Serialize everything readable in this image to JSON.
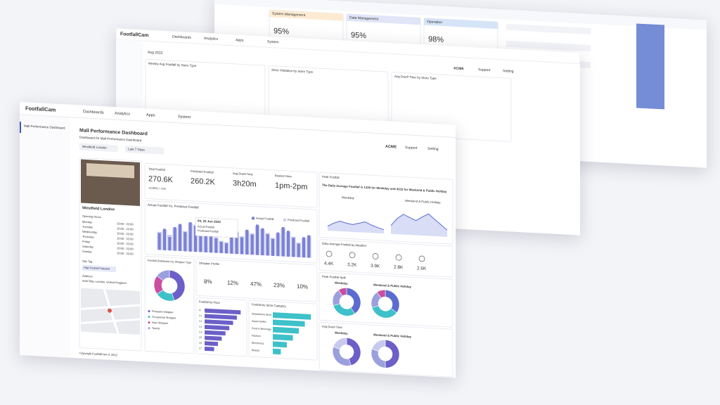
{
  "back_panel_top": {
    "cards": [
      {
        "label": "System Management",
        "value": "95%"
      },
      {
        "label": "Data Management",
        "value": "95%"
      },
      {
        "label": "Operation",
        "value": "98%"
      }
    ]
  },
  "back_panel_mid": {
    "brand": "FootfallCam",
    "nav": [
      "Dashboards",
      "Analytics",
      "Apps",
      "System"
    ],
    "filter": "Aug 2022",
    "account": "ACME",
    "links": [
      "Support",
      "Setting"
    ],
    "charts": [
      "Weekly Avg Footfall by Store Type",
      "Store Visitation by Store Type",
      "Avg Dwell Time by Store Type"
    ]
  },
  "app": {
    "brand": "FootfallCam",
    "nav": [
      "Dashboards",
      "Analytics",
      "Apps",
      "System"
    ],
    "sidebar": "Mall Performance Dashboard",
    "account": "ACME",
    "links": [
      "Support",
      "Setting"
    ]
  },
  "dashboard": {
    "title": "Mall Performance Dashboard",
    "subtitle": "Dashboard for Mall Performance Dashboard",
    "filters": [
      "Westfield London",
      "Last 7 Days"
    ],
    "copyright": "Copyright FootfallCam © 2022"
  },
  "site": {
    "name": "Westfield London",
    "hours_title": "Opening Hours",
    "hours": [
      [
        "Monday",
        "10:00 - 22:00"
      ],
      [
        "Tuesday",
        "10:00 - 22:00"
      ],
      [
        "Wednesday",
        "10:00 - 22:00"
      ],
      [
        "Thursday",
        "10:00 - 22:00"
      ],
      [
        "Friday",
        "10:00 - 22:00"
      ],
      [
        "Saturday",
        "10:00 - 22:00"
      ],
      [
        "Sunday",
        "10:00 - 22:00"
      ]
    ],
    "tag_title": "Site Tag",
    "tag": "High Footfall Potential",
    "address_title": "Address",
    "address": "Ariel Way, London, United Kingdom"
  },
  "kpis": [
    {
      "label": "Total Footfall",
      "value": "270.6K",
      "change": "+0.05% / +1%"
    },
    {
      "label": "Predicted Footfall",
      "value": "260.2K"
    },
    {
      "label": "Avg Dwell Time",
      "value": "3h20m"
    },
    {
      "label": "Busiest Hour",
      "value": "1pm-2pm"
    }
  ],
  "footfall_chart": {
    "title": "Actual Footfall Vs. Predicted Footfall",
    "tooltip": "04, 22 Jun 2022",
    "ylim": [
      0,
      3000
    ],
    "series": [
      {
        "name": "Actual Footfall",
        "color": "#7b80d6",
        "values": [
          1500,
          1900,
          1200,
          2100,
          2400,
          1700,
          2600,
          2300,
          1400,
          1800,
          2500,
          1300,
          1000,
          900,
          1600,
          2000,
          1500,
          2200,
          1800,
          2700,
          2400,
          1900,
          1500,
          2100,
          2600,
          2300,
          1700,
          1200,
          1800,
          2000
        ]
      },
      {
        "name": "Predicted Footfall",
        "color": "#ccd0ee",
        "values": [
          1600,
          1800,
          1400,
          2000,
          2300,
          1800,
          2500,
          2400,
          1500,
          1700,
          2400,
          1400,
          1100,
          1000,
          1500,
          1900,
          1600,
          2100,
          1900,
          2600,
          2300,
          2000,
          1600,
          2000,
          2500,
          2200,
          1800,
          1300,
          1700,
          1900
        ]
      }
    ]
  },
  "peak": {
    "title": "Peak Footfall",
    "text": "The Daily Average Footfall is 1320 for Weekday and 4332 for Weekend & Public Holiday",
    "ylim": [
      0,
      5000
    ],
    "series": [
      {
        "name": "Weekday",
        "color": "#5b6bd0",
        "values": [
          800,
          1400,
          1800,
          1500,
          1300,
          1600,
          1900,
          1400,
          1000,
          700
        ]
      },
      {
        "name": "Weekend & Public Holiday",
        "color": "#5b6bd0",
        "values": [
          1500,
          2800,
          3600,
          3100,
          2600,
          3300,
          3900,
          3000,
          2100,
          1200
        ]
      }
    ]
  },
  "weather": {
    "title": "Daily Average Footfall by Weather",
    "values": [
      "4.4K",
      "3.2K",
      "3.9K",
      "2.8K",
      "2.6K"
    ]
  },
  "shopper_type": {
    "title": "Footfall Distribution by Shopper Type",
    "colors": [
      "#6c5fc7",
      "#3ec1c9",
      "#c94fa3",
      "#9aa0dd"
    ],
    "values": [
      45,
      20,
      20,
      15
    ],
    "legend": [
      "Frequent Shopper",
      "Occasional Shopper",
      "New Shopper",
      "Tourist"
    ]
  },
  "shopper_profile": {
    "title": "Shopper Profile",
    "values": [
      "8%",
      "12%",
      "47%",
      "23%",
      "10%"
    ]
  },
  "floor": {
    "title": "Footfall by Floor",
    "color": "#6c5fc7",
    "xlim": [
      0,
      100
    ],
    "categories": [
      "G",
      "L1",
      "L2",
      "L3",
      "L4",
      "L5",
      "L6",
      "L7"
    ],
    "values": [
      95,
      85,
      75,
      65,
      55,
      45,
      35,
      25
    ]
  },
  "category": {
    "title": "Footfall by Store Category",
    "color": "#3ec1c9",
    "xlim": [
      0,
      100
    ],
    "categories": [
      "Department Store",
      "Supermarket",
      "Food & Beverage",
      "Fashion",
      "Electronics",
      "Beauty"
    ],
    "values": [
      95,
      80,
      65,
      50,
      35,
      20
    ]
  },
  "peak_split": {
    "title": "Peak Footfall Split",
    "labels": [
      "Weekday",
      "Weekend & Public Holiday"
    ],
    "colors": [
      "#5b6bd0",
      "#3ec1c9",
      "#9aa0dd",
      "#c94fa3"
    ],
    "weekday": [
      40,
      30,
      20,
      10
    ],
    "weekend": [
      35,
      35,
      20,
      10
    ]
  },
  "dwell_split": {
    "title": "Avg Dwell Time",
    "labels": [
      "Weekday",
      "Weekend & Public Holiday"
    ],
    "colors": [
      "#6c5fc7",
      "#9aa0dd",
      "#c7c9ef"
    ],
    "weekday": [
      45,
      35,
      20
    ],
    "weekend": [
      50,
      30,
      20
    ]
  }
}
